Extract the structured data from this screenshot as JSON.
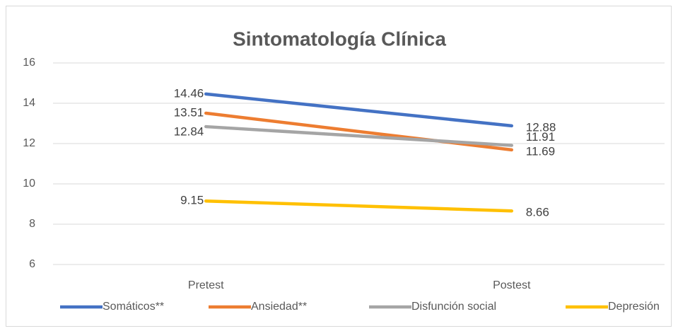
{
  "chart_data": {
    "type": "line",
    "title": "Sintomatología Clínica",
    "categories": [
      "Pretest",
      "Postest"
    ],
    "series": [
      {
        "name": "Somáticos**",
        "color": "#4472c4",
        "values": [
          14.46,
          12.88
        ]
      },
      {
        "name": "Ansiedad**",
        "color": "#ed7d31",
        "values": [
          13.51,
          11.69
        ]
      },
      {
        "name": "Disfunción social",
        "color": "#a5a5a5",
        "values": [
          12.84,
          11.91
        ]
      },
      {
        "name": "Depresión",
        "color": "#ffc000",
        "values": [
          9.15,
          8.66
        ]
      }
    ],
    "ylim": [
      6,
      16
    ],
    "yticks": [
      6,
      8,
      10,
      12,
      14,
      16
    ],
    "grid": true,
    "legend": "bottom"
  }
}
